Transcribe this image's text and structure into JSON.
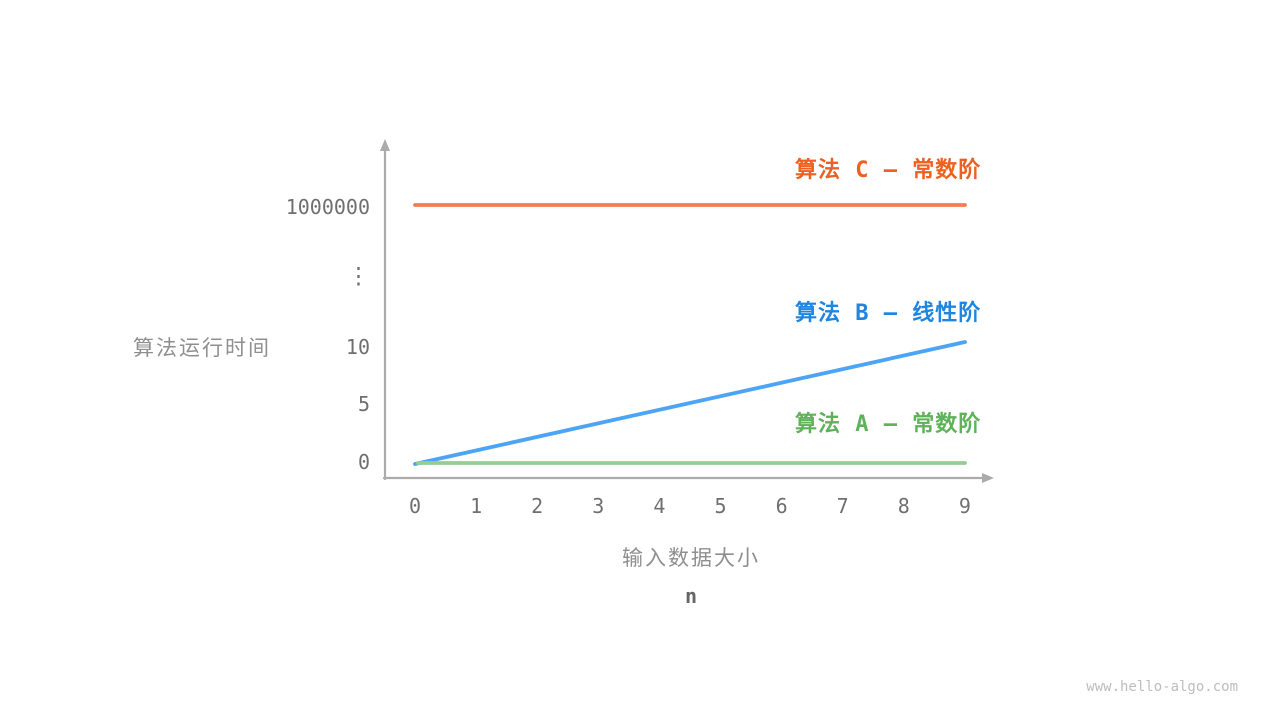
{
  "page": {
    "background": "#ffffff",
    "watermark": "www.hello-algo.com"
  },
  "chart_data": {
    "type": "line",
    "title": "",
    "grid": false,
    "background": "#ffffff",
    "x_axis": {
      "label_line1": "输入数据大小",
      "label_line2": "n",
      "ticks": [
        "0",
        "1",
        "2",
        "3",
        "4",
        "5",
        "6",
        "7",
        "8",
        "9"
      ],
      "range": [
        0,
        9
      ]
    },
    "y_axis": {
      "label": "算法运行时间",
      "ticks": [
        "0",
        "5",
        "10",
        "⋮",
        "1000000"
      ],
      "broken_axis": true,
      "ylim": [
        0,
        1000000
      ]
    },
    "legend_position": "labels-inline-right",
    "series": [
      {
        "name": "算法 C",
        "label": "算法 C — 常数阶",
        "complexity": "常数阶",
        "color": "#F77B55",
        "label_color": "#ED6020",
        "x": [
          0,
          1,
          2,
          3,
          4,
          5,
          6,
          7,
          8,
          9
        ],
        "values": [
          1000000,
          1000000,
          1000000,
          1000000,
          1000000,
          1000000,
          1000000,
          1000000,
          1000000,
          1000000
        ]
      },
      {
        "name": "算法 B",
        "label": "算法 B — 线性阶",
        "complexity": "线性阶",
        "color": "#4BA4F4",
        "label_color": "#1E86E0",
        "x": [
          0,
          1,
          2,
          3,
          4,
          5,
          6,
          7,
          8,
          9
        ],
        "values": [
          0,
          1,
          2,
          3,
          4,
          5,
          6,
          7,
          8,
          9
        ]
      },
      {
        "name": "算法 A",
        "label": "算法 A — 常数阶",
        "complexity": "常数阶",
        "color": "#95CD92",
        "label_color": "#5FB25A",
        "x": [
          0,
          1,
          2,
          3,
          4,
          5,
          6,
          7,
          8,
          9
        ],
        "values": [
          1,
          1,
          1,
          1,
          1,
          1,
          1,
          1,
          1,
          1
        ]
      }
    ]
  }
}
